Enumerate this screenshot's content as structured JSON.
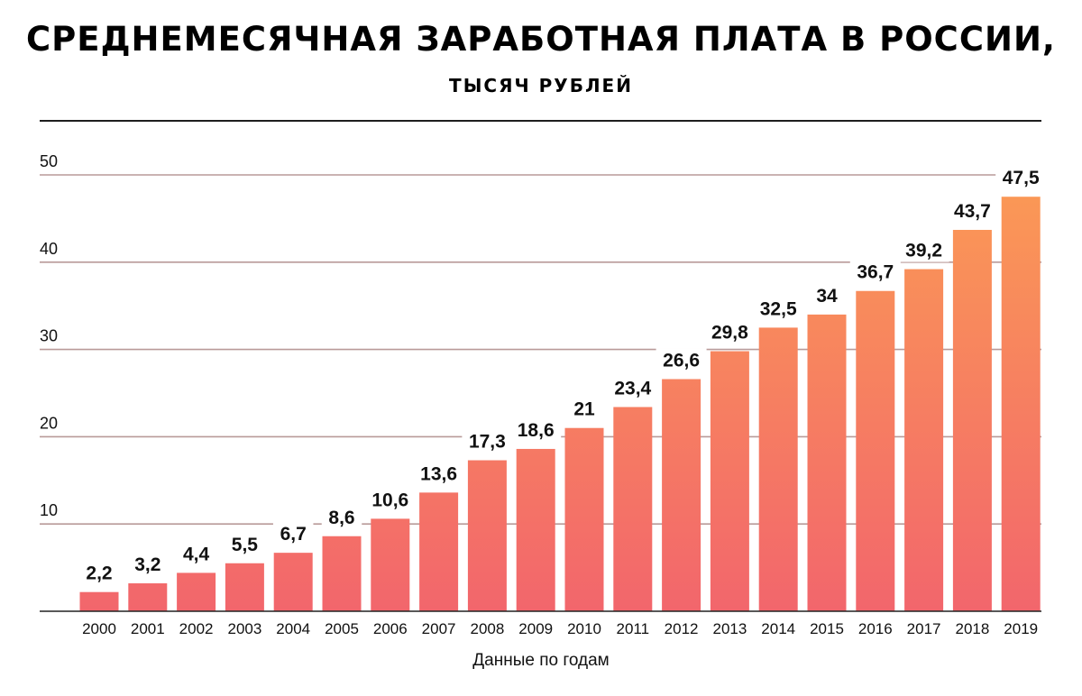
{
  "chart_data": {
    "type": "bar",
    "title": "СРЕДНЕМЕСЯЧНАЯ ЗАРАБОТНАЯ ПЛАТА В РОССИИ,",
    "subtitle": "ТЫСЯЧ РУБЛЕЙ",
    "xlabel": "Данные по годам",
    "ylabel": "",
    "categories": [
      "2000",
      "2001",
      "2002",
      "2003",
      "2004",
      "2005",
      "2006",
      "2007",
      "2008",
      "2009",
      "2010",
      "2011",
      "2012",
      "2013",
      "2014",
      "2015",
      "2016",
      "2017",
      "2018",
      "2019"
    ],
    "values": [
      2.2,
      3.2,
      4.4,
      5.5,
      6.7,
      8.6,
      10.6,
      13.6,
      17.3,
      18.6,
      21,
      23.4,
      26.6,
      29.8,
      32.5,
      34,
      36.7,
      39.2,
      43.7,
      47.5
    ],
    "value_labels": [
      "2,2",
      "3,2",
      "4,4",
      "5,5",
      "6,7",
      "8,6",
      "10,6",
      "13,6",
      "17,3",
      "18,6",
      "21",
      "23,4",
      "26,6",
      "29,8",
      "32,5",
      "34",
      "36,7",
      "39,2",
      "43,7",
      "47,5"
    ],
    "yticks": [
      10,
      20,
      30,
      40,
      50
    ],
    "ylim": [
      0,
      50
    ],
    "grid": true,
    "legend": "none",
    "colors": {
      "bar_top": "#FB9A55",
      "bar_bottom": "#F2666C",
      "gridline": "#B99A99",
      "baseline": "#222222"
    }
  }
}
